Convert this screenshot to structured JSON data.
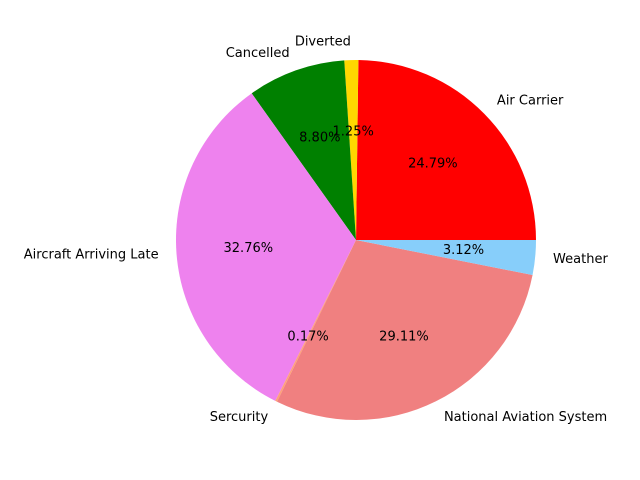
{
  "chart_data": {
    "type": "pie",
    "title": "",
    "slices": [
      {
        "label": "Air Carrier",
        "value": 24.79,
        "pct_label": "24.79%",
        "color": "#ff0000"
      },
      {
        "label": "Diverted",
        "value": 1.25,
        "pct_label": "1.25%",
        "color": "#ffd700"
      },
      {
        "label": "Cancelled",
        "value": 8.8,
        "pct_label": "8.80%",
        "color": "#008000"
      },
      {
        "label": "Aircraft Arriving Late",
        "value": 32.76,
        "pct_label": "32.76%",
        "color": "#ee82ee"
      },
      {
        "label": "Sercurity",
        "value": 0.17,
        "pct_label": "0.17%",
        "color": "#ffa07a"
      },
      {
        "label": "National Aviation System",
        "value": 29.11,
        "pct_label": "29.11%",
        "color": "#f08080"
      },
      {
        "label": "Weather",
        "value": 3.12,
        "pct_label": "3.12%",
        "color": "#87cefa"
      }
    ]
  }
}
